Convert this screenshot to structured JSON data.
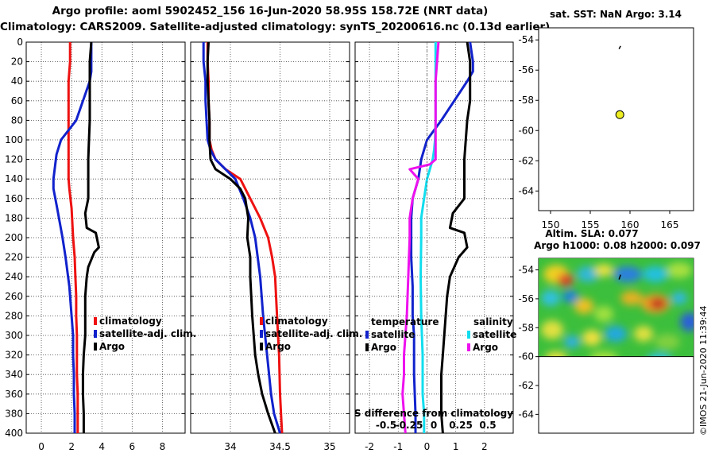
{
  "title_line1": "Argo profile: aoml 5902452_156 16-Jun-2020 58.95S 158.72E (NRT data)",
  "title_line2": "Climatology: CARS2009. Satellite-adjusted climatology: synTS_20200616.nc (0.13d earlier)",
  "depth_ticks": [
    0,
    20,
    40,
    60,
    80,
    100,
    120,
    140,
    160,
    180,
    200,
    220,
    240,
    260,
    280,
    300,
    320,
    340,
    360,
    380,
    400
  ],
  "colors": {
    "climatology": "#ee1111",
    "satellite": "#1122cc",
    "argo": "#000000",
    "salinity_satellite": "#11ddee",
    "salinity_argo": "#ee11ee"
  },
  "chart_data": [
    {
      "name": "temperature-profile",
      "type": "line",
      "xlim": [
        -1,
        9.5
      ],
      "ylim": [
        400,
        0
      ],
      "xticks": [
        0,
        2,
        4,
        6,
        8
      ],
      "legend": [
        "climatology",
        "satellite-adj. clim.",
        "Argo"
      ],
      "series": [
        {
          "name": "climatology",
          "key": "climatology",
          "x": [
            1.9,
            1.9,
            1.8,
            1.8,
            1.8,
            1.8,
            1.8,
            1.8,
            1.85,
            2.0,
            2.1,
            2.2,
            2.25,
            2.3,
            2.3,
            2.35,
            2.35,
            2.35,
            2.4,
            2.4,
            2.4
          ],
          "y": [
            0,
            20,
            40,
            60,
            80,
            100,
            120,
            140,
            150,
            170,
            200,
            220,
            240,
            260,
            280,
            300,
            320,
            340,
            360,
            380,
            400
          ]
        },
        {
          "name": "satellite-adj. clim.",
          "key": "satellite",
          "x": [
            3.3,
            3.3,
            3.3,
            3.2,
            2.3,
            1.3,
            1.0,
            0.8,
            0.8,
            1.05,
            1.4,
            1.6,
            1.85,
            2.0,
            2.1,
            2.1,
            2.15,
            2.15,
            2.2,
            2.2,
            2.2
          ],
          "y": [
            0,
            20,
            30,
            40,
            80,
            100,
            115,
            140,
            150,
            170,
            200,
            220,
            250,
            280,
            300,
            320,
            340,
            360,
            380,
            390,
            400
          ]
        },
        {
          "name": "Argo",
          "key": "argo",
          "x": [
            3.3,
            3.2,
            3.2,
            3.2,
            3.2,
            3.15,
            3.1,
            3.1,
            3.1,
            2.9,
            3.0,
            3.6,
            3.8,
            3.5,
            3.1,
            3.0,
            2.9,
            2.9,
            2.9,
            2.8,
            2.75,
            2.75,
            2.8,
            2.8
          ],
          "y": [
            0,
            20,
            40,
            60,
            80,
            100,
            120,
            140,
            160,
            175,
            190,
            195,
            210,
            215,
            230,
            240,
            260,
            280,
            300,
            320,
            340,
            360,
            380,
            400
          ]
        }
      ]
    },
    {
      "name": "salinity-profile",
      "type": "line",
      "xlim": [
        33.6,
        35.2
      ],
      "ylim": [
        400,
        0
      ],
      "xticks": [
        34,
        34.5,
        35
      ],
      "legend": [
        "climatology",
        "satellite-adj. clim.",
        "Argo"
      ],
      "series": [
        {
          "name": "climatology",
          "key": "climatology",
          "x": [
            33.77,
            33.77,
            33.78,
            33.78,
            33.79,
            33.79,
            33.81,
            33.85,
            33.95,
            34.1,
            34.2,
            34.3,
            34.38,
            34.42,
            34.45,
            34.47,
            34.49,
            34.5,
            34.51,
            34.52
          ],
          "y": [
            0,
            20,
            40,
            60,
            80,
            100,
            110,
            120,
            130,
            140,
            160,
            180,
            200,
            220,
            240,
            280,
            320,
            360,
            380,
            400
          ]
        },
        {
          "name": "satellite-adj. clim.",
          "key": "satellite",
          "x": [
            33.73,
            33.73,
            33.75,
            33.75,
            33.76,
            33.77,
            33.8,
            33.85,
            33.95,
            34.05,
            34.13,
            34.2,
            34.25,
            34.3,
            34.33,
            34.37,
            34.41,
            34.44,
            34.47,
            34.5
          ],
          "y": [
            0,
            20,
            40,
            60,
            80,
            100,
            110,
            120,
            130,
            140,
            160,
            180,
            200,
            240,
            280,
            320,
            360,
            380,
            390,
            400
          ]
        },
        {
          "name": "Argo",
          "key": "argo",
          "x": [
            33.78,
            33.77,
            33.77,
            33.78,
            33.79,
            33.79,
            33.8,
            33.85,
            34.0,
            34.1,
            34.15,
            34.18,
            34.17,
            34.2,
            34.2,
            34.22,
            34.25,
            34.28,
            34.32,
            34.38,
            34.45
          ],
          "y": [
            0,
            20,
            40,
            60,
            80,
            100,
            120,
            130,
            140,
            150,
            160,
            180,
            200,
            220,
            240,
            280,
            320,
            340,
            360,
            380,
            400
          ]
        }
      ]
    },
    {
      "name": "difference-profile",
      "type": "line",
      "xlim": [
        -2.5,
        3.0
      ],
      "ylim": [
        400,
        0
      ],
      "xticks": [
        -2,
        -1,
        0,
        1,
        2
      ],
      "xlabel": "S difference from climatology",
      "xlabel_ticks": [
        "-0.5",
        "-0.25",
        "0",
        "0.25",
        "0.5"
      ],
      "legend_left_title": "temperature",
      "legend_left": [
        "satellite",
        "Argo"
      ],
      "legend_right_title": "salinity",
      "legend_right": [
        "satellite",
        "Argo"
      ],
      "series": [
        {
          "name": "temperature satellite",
          "key": "satellite",
          "x": [
            1.5,
            1.6,
            1.6,
            1.4,
            0.5,
            0.0,
            -0.2,
            -0.3,
            -0.5,
            -0.55,
            -0.55,
            -0.55,
            -0.5,
            -0.5,
            -0.45,
            -0.45,
            -0.4,
            -0.4
          ],
          "y": [
            0,
            20,
            30,
            40,
            80,
            100,
            120,
            140,
            160,
            180,
            200,
            220,
            250,
            280,
            300,
            340,
            380,
            400
          ]
        },
        {
          "name": "temperature Argo",
          "key": "argo",
          "x": [
            1.4,
            1.5,
            1.5,
            1.5,
            1.4,
            1.35,
            1.3,
            1.3,
            1.3,
            0.9,
            0.8,
            1.3,
            1.4,
            1.1,
            0.8,
            0.7,
            0.65,
            0.6,
            0.55,
            0.5,
            0.5,
            0.55
          ],
          "y": [
            0,
            20,
            40,
            60,
            80,
            100,
            120,
            140,
            160,
            175,
            190,
            195,
            210,
            220,
            240,
            260,
            280,
            300,
            320,
            340,
            380,
            400
          ]
        },
        {
          "name": "salinity satellite",
          "key": "salinity_satellite",
          "x": [
            0.3,
            0.3,
            0.3,
            0.3,
            0.3,
            0.28,
            0.25,
            0.2,
            0.0,
            -0.1,
            -0.2,
            -0.2,
            -0.22,
            -0.2,
            -0.15,
            -0.15,
            -0.1,
            -0.1
          ],
          "y": [
            0,
            20,
            40,
            60,
            80,
            100,
            110,
            120,
            140,
            160,
            180,
            200,
            240,
            280,
            320,
            360,
            380,
            400
          ]
        },
        {
          "name": "salinity Argo",
          "key": "salinity_argo",
          "x": [
            0.4,
            0.35,
            0.3,
            0.3,
            0.3,
            0.3,
            0.3,
            0.3,
            0.1,
            -0.6,
            -0.3,
            -0.5,
            -0.6,
            -0.6,
            -0.65,
            -0.7,
            -0.75,
            -0.8,
            -0.8,
            -0.85,
            -0.8,
            -0.75
          ],
          "y": [
            0,
            20,
            40,
            60,
            80,
            100,
            110,
            120,
            125,
            130,
            140,
            160,
            180,
            200,
            240,
            280,
            300,
            320,
            340,
            360,
            380,
            400
          ]
        }
      ]
    },
    {
      "name": "sst-map",
      "type": "scatter",
      "title": "sat. SST: NaN Argo: 3.14",
      "xlim": [
        148.5,
        168
      ],
      "ylim": [
        -65.3,
        -53.2
      ],
      "xticks": [
        150,
        155,
        160,
        165
      ],
      "yticks": [
        -54,
        -56,
        -58,
        -60,
        -62,
        -64
      ],
      "points": [
        {
          "lon": 158.72,
          "lat": -58.95,
          "label": "Argo position"
        }
      ]
    },
    {
      "name": "sla-map",
      "type": "heatmap",
      "title_line1": "Altim. SLA: 0.077",
      "title_line2": "Argo h1000: 0.08 h2000: 0.097",
      "xlim": [
        148.5,
        168
      ],
      "ylim": [
        -65.3,
        -53.2
      ],
      "yticks": [
        -54,
        -56,
        -58,
        -60,
        -62,
        -64
      ],
      "field_lat_range": [
        -60,
        -53.2
      ],
      "marker": {
        "lon": 158.72,
        "lat": -54.5
      }
    }
  ],
  "watermark": "©IMOS 21-Jun-2020 11:39:44"
}
